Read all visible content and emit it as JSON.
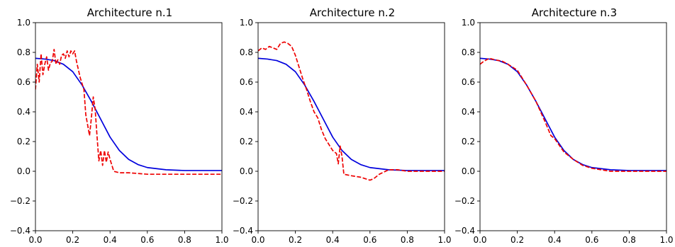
{
  "chart_data": [
    {
      "type": "line",
      "title": "Architecture n.1",
      "xlim": [
        0,
        1
      ],
      "ylim": [
        -0.4,
        1.0
      ],
      "xticks": [
        "0.0",
        "0.2",
        "0.4",
        "0.6",
        "0.8",
        "1.0"
      ],
      "yticks": [
        "−0.4",
        "−0.2",
        "0.0",
        "0.2",
        "0.4",
        "0.6",
        "0.8",
        "1.0"
      ],
      "grid": false,
      "series": [
        {
          "color": "#0000dd",
          "style": "solid",
          "points": [
            [
              0,
              0.76
            ],
            [
              0.05,
              0.755
            ],
            [
              0.1,
              0.745
            ],
            [
              0.15,
              0.72
            ],
            [
              0.2,
              0.67
            ],
            [
              0.25,
              0.58
            ],
            [
              0.3,
              0.47
            ],
            [
              0.35,
              0.35
            ],
            [
              0.4,
              0.23
            ],
            [
              0.45,
              0.14
            ],
            [
              0.5,
              0.08
            ],
            [
              0.55,
              0.045
            ],
            [
              0.6,
              0.025
            ],
            [
              0.7,
              0.01
            ],
            [
              0.8,
              0.005
            ],
            [
              1.0,
              0.005
            ]
          ]
        },
        {
          "color": "#ee0000",
          "style": "dashed",
          "points": [
            [
              0,
              0.55
            ],
            [
              0.01,
              0.72
            ],
            [
              0.02,
              0.6
            ],
            [
              0.03,
              0.79
            ],
            [
              0.04,
              0.65
            ],
            [
              0.05,
              0.72
            ],
            [
              0.06,
              0.77
            ],
            [
              0.07,
              0.68
            ],
            [
              0.08,
              0.73
            ],
            [
              0.09,
              0.74
            ],
            [
              0.1,
              0.82
            ],
            [
              0.11,
              0.72
            ],
            [
              0.12,
              0.75
            ],
            [
              0.13,
              0.72
            ],
            [
              0.14,
              0.78
            ],
            [
              0.15,
              0.79
            ],
            [
              0.16,
              0.76
            ],
            [
              0.17,
              0.81
            ],
            [
              0.18,
              0.77
            ],
            [
              0.19,
              0.81
            ],
            [
              0.2,
              0.79
            ],
            [
              0.21,
              0.81
            ],
            [
              0.22,
              0.74
            ],
            [
              0.24,
              0.63
            ],
            [
              0.26,
              0.55
            ],
            [
              0.27,
              0.38
            ],
            [
              0.28,
              0.31
            ],
            [
              0.29,
              0.24
            ],
            [
              0.3,
              0.36
            ],
            [
              0.31,
              0.5
            ],
            [
              0.32,
              0.42
            ],
            [
              0.33,
              0.24
            ],
            [
              0.34,
              0.07
            ],
            [
              0.35,
              0.14
            ],
            [
              0.36,
              0.04
            ],
            [
              0.37,
              0.14
            ],
            [
              0.38,
              0.06
            ],
            [
              0.39,
              0.13
            ],
            [
              0.4,
              0.08
            ],
            [
              0.42,
              0.0
            ],
            [
              0.45,
              -0.01
            ],
            [
              0.5,
              -0.01
            ],
            [
              0.6,
              -0.02
            ],
            [
              0.7,
              -0.02
            ],
            [
              0.8,
              -0.02
            ],
            [
              0.9,
              -0.02
            ],
            [
              1.0,
              -0.02
            ]
          ]
        }
      ]
    },
    {
      "type": "line",
      "title": "Architecture n.2",
      "xlim": [
        0,
        1
      ],
      "ylim": [
        -0.4,
        1.0
      ],
      "xticks": [
        "0.0",
        "0.2",
        "0.4",
        "0.6",
        "0.8",
        "1.0"
      ],
      "yticks": [
        "−0.4",
        "−0.2",
        "0.0",
        "0.2",
        "0.4",
        "0.6",
        "0.8",
        "1.0"
      ],
      "grid": false,
      "series": [
        {
          "color": "#0000dd",
          "style": "solid",
          "points": [
            [
              0,
              0.76
            ],
            [
              0.05,
              0.755
            ],
            [
              0.1,
              0.745
            ],
            [
              0.15,
              0.72
            ],
            [
              0.2,
              0.67
            ],
            [
              0.25,
              0.58
            ],
            [
              0.3,
              0.47
            ],
            [
              0.35,
              0.35
            ],
            [
              0.4,
              0.23
            ],
            [
              0.45,
              0.14
            ],
            [
              0.5,
              0.08
            ],
            [
              0.55,
              0.045
            ],
            [
              0.6,
              0.025
            ],
            [
              0.7,
              0.01
            ],
            [
              0.8,
              0.005
            ],
            [
              1.0,
              0.005
            ]
          ]
        },
        {
          "color": "#ee0000",
          "style": "dashed",
          "points": [
            [
              0,
              0.81
            ],
            [
              0.02,
              0.83
            ],
            [
              0.04,
              0.82
            ],
            [
              0.06,
              0.84
            ],
            [
              0.08,
              0.83
            ],
            [
              0.1,
              0.82
            ],
            [
              0.12,
              0.86
            ],
            [
              0.14,
              0.87
            ],
            [
              0.16,
              0.86
            ],
            [
              0.18,
              0.84
            ],
            [
              0.2,
              0.78
            ],
            [
              0.22,
              0.7
            ],
            [
              0.24,
              0.62
            ],
            [
              0.26,
              0.55
            ],
            [
              0.28,
              0.47
            ],
            [
              0.3,
              0.4
            ],
            [
              0.32,
              0.36
            ],
            [
              0.34,
              0.28
            ],
            [
              0.36,
              0.22
            ],
            [
              0.38,
              0.18
            ],
            [
              0.4,
              0.14
            ],
            [
              0.42,
              0.12
            ],
            [
              0.43,
              0.05
            ],
            [
              0.44,
              0.17
            ],
            [
              0.45,
              0.1
            ],
            [
              0.46,
              -0.02
            ],
            [
              0.5,
              -0.03
            ],
            [
              0.55,
              -0.04
            ],
            [
              0.6,
              -0.06
            ],
            [
              0.62,
              -0.05
            ],
            [
              0.65,
              -0.02
            ],
            [
              0.7,
              0.01
            ],
            [
              0.75,
              0.01
            ],
            [
              0.8,
              0.0
            ],
            [
              0.85,
              0.0
            ],
            [
              0.9,
              0.0
            ],
            [
              0.95,
              0.0
            ],
            [
              1.0,
              0.0
            ]
          ]
        }
      ]
    },
    {
      "type": "line",
      "title": "Architecture n.3",
      "xlim": [
        0,
        1
      ],
      "ylim": [
        -0.4,
        1.0
      ],
      "xticks": [
        "0.0",
        "0.2",
        "0.4",
        "0.6",
        "0.8",
        "1.0"
      ],
      "yticks": [
        "−0.4",
        "−0.2",
        "0.0",
        "0.2",
        "0.4",
        "0.6",
        "0.8",
        "1.0"
      ],
      "grid": false,
      "series": [
        {
          "color": "#0000dd",
          "style": "solid",
          "points": [
            [
              0,
              0.76
            ],
            [
              0.05,
              0.755
            ],
            [
              0.1,
              0.745
            ],
            [
              0.15,
              0.72
            ],
            [
              0.2,
              0.67
            ],
            [
              0.25,
              0.58
            ],
            [
              0.3,
              0.47
            ],
            [
              0.35,
              0.35
            ],
            [
              0.4,
              0.23
            ],
            [
              0.45,
              0.14
            ],
            [
              0.5,
              0.08
            ],
            [
              0.55,
              0.045
            ],
            [
              0.6,
              0.025
            ],
            [
              0.7,
              0.01
            ],
            [
              0.8,
              0.005
            ],
            [
              1.0,
              0.005
            ]
          ]
        },
        {
          "color": "#ee0000",
          "style": "dashed",
          "points": [
            [
              0,
              0.72
            ],
            [
              0.02,
              0.74
            ],
            [
              0.05,
              0.76
            ],
            [
              0.08,
              0.75
            ],
            [
              0.12,
              0.74
            ],
            [
              0.15,
              0.72
            ],
            [
              0.2,
              0.68
            ],
            [
              0.25,
              0.58
            ],
            [
              0.3,
              0.47
            ],
            [
              0.35,
              0.33
            ],
            [
              0.38,
              0.24
            ],
            [
              0.4,
              0.22
            ],
            [
              0.45,
              0.13
            ],
            [
              0.5,
              0.08
            ],
            [
              0.55,
              0.04
            ],
            [
              0.6,
              0.02
            ],
            [
              0.65,
              0.01
            ],
            [
              0.7,
              0.0
            ],
            [
              0.8,
              0.0
            ],
            [
              0.9,
              0.0
            ],
            [
              1.0,
              0.0
            ]
          ]
        }
      ]
    }
  ]
}
